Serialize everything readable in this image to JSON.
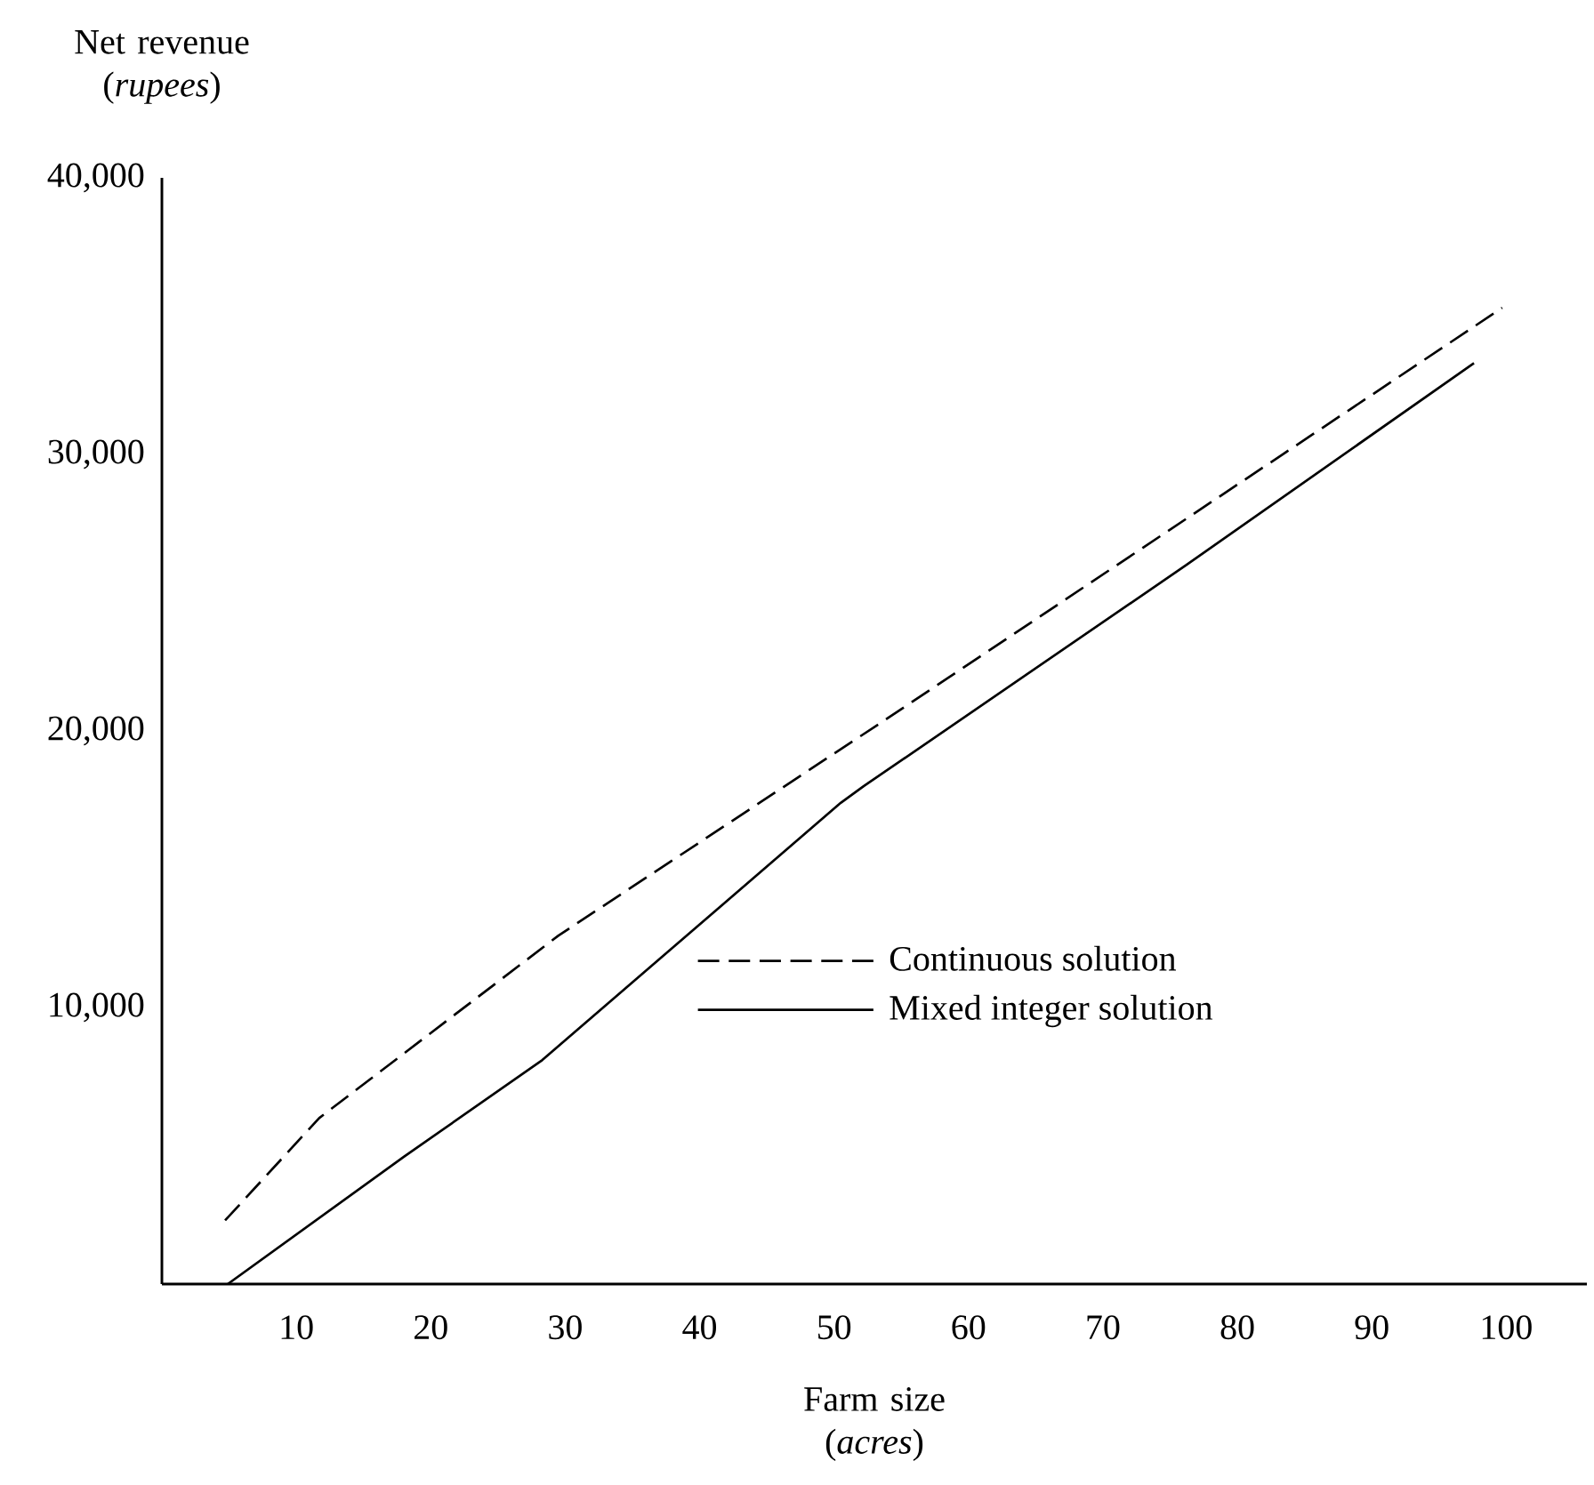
{
  "chart_data": {
    "type": "line",
    "xlabel": "Farm size (*acres*)",
    "ylabel": "Net revenue (*rupees*)",
    "xlim": [
      0,
      106
    ],
    "ylim": [
      0,
      40000
    ],
    "xticks": [
      10,
      20,
      30,
      40,
      50,
      60,
      70,
      80,
      90,
      100
    ],
    "yticks": [
      {
        "value": 10000,
        "label": "10,000"
      },
      {
        "value": 20000,
        "label": "20,000"
      },
      {
        "value": 30000,
        "label": "30,000"
      },
      {
        "value": 40000,
        "label": "40,000"
      }
    ],
    "grid": false,
    "legend": "bottom right",
    "series": [
      {
        "name": "Continuous solution",
        "color": "#000000",
        "line_style": "dashed",
        "x": [
          4.7,
          11.7,
          29.5,
          53.8,
          99.7
        ],
        "values": [
          2300,
          6000,
          12600,
          20400,
          35300
        ]
      },
      {
        "name": "Mixed integer solution",
        "color": "#000000",
        "line_style": "solid",
        "x": [
          4.9,
          18,
          28.3,
          50.5,
          52.2,
          76.2,
          97.6
        ],
        "values": [
          0,
          4600,
          8100,
          17400,
          18000,
          26000,
          33300
        ]
      }
    ]
  }
}
